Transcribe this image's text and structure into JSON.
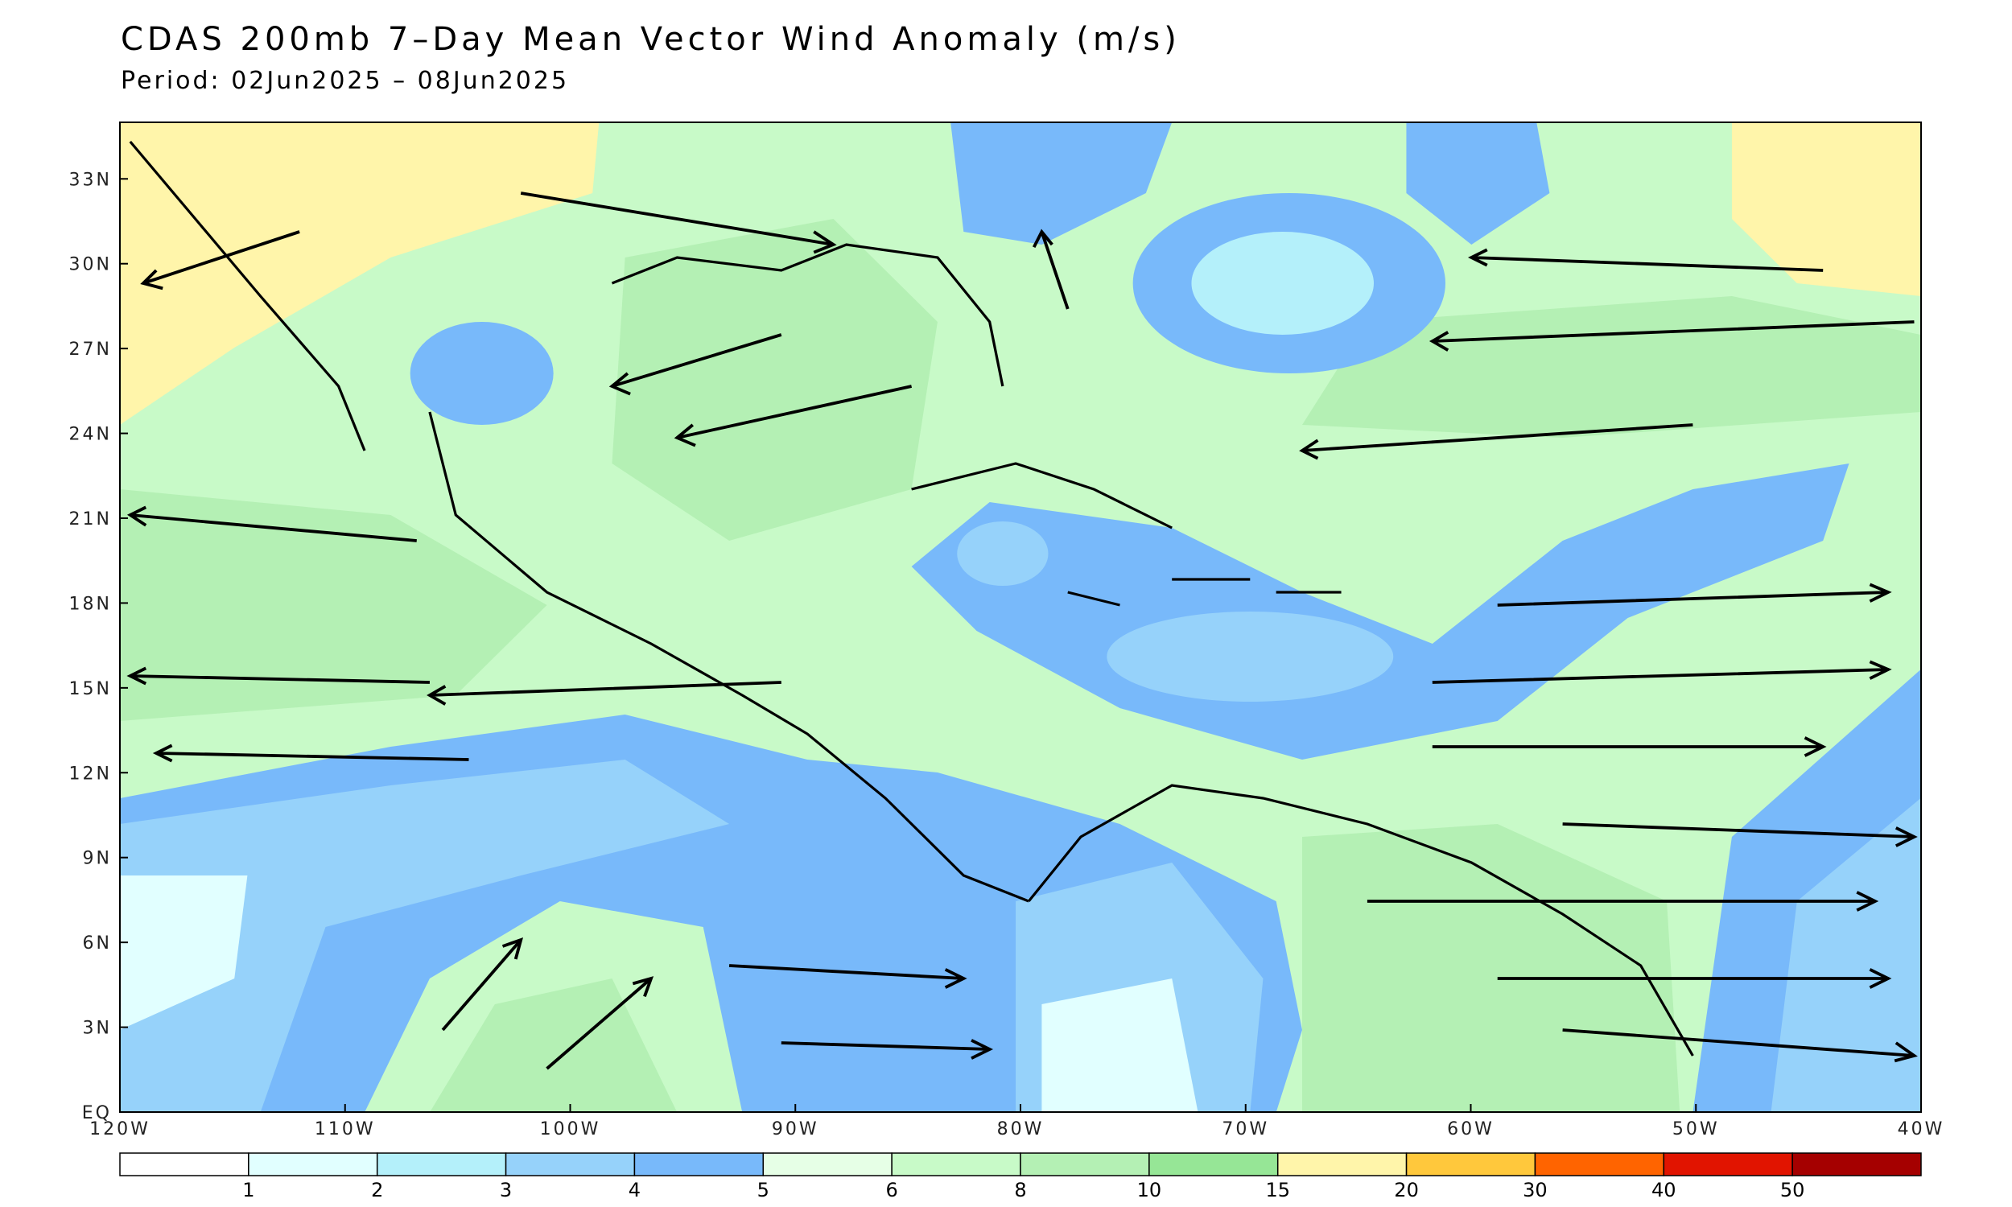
{
  "title": "CDAS 200mb 7–Day Mean Vector Wind Anomaly (m/s)",
  "subtitle": "Period: 02Jun2025 – 08Jun2025",
  "map": {
    "xlim": [
      -120,
      -40
    ],
    "ylim": [
      0,
      35
    ],
    "xticks": [
      {
        "value": -120,
        "label": "120W"
      },
      {
        "value": -110,
        "label": "110W"
      },
      {
        "value": -100,
        "label": "100W"
      },
      {
        "value": -90,
        "label": "90W"
      },
      {
        "value": -80,
        "label": "80W"
      },
      {
        "value": -70,
        "label": "70W"
      },
      {
        "value": -60,
        "label": "60W"
      },
      {
        "value": -50,
        "label": "50W"
      },
      {
        "value": -40,
        "label": "40W"
      }
    ],
    "yticks": [
      {
        "value": 0,
        "label": "EQ"
      },
      {
        "value": 3,
        "label": "3N"
      },
      {
        "value": 6,
        "label": "6N"
      },
      {
        "value": 9,
        "label": "9N"
      },
      {
        "value": 12,
        "label": "12N"
      },
      {
        "value": 15,
        "label": "15N"
      },
      {
        "value": 18,
        "label": "18N"
      },
      {
        "value": 21,
        "label": "21N"
      },
      {
        "value": 24,
        "label": "24N"
      },
      {
        "value": 27,
        "label": "27N"
      },
      {
        "value": 30,
        "label": "30N"
      },
      {
        "value": 33,
        "label": "33N"
      }
    ]
  },
  "colorbar": {
    "levels": [
      1,
      2,
      3,
      4,
      5,
      6,
      8,
      10,
      15,
      20,
      30,
      40,
      50
    ],
    "colors": [
      "#ffffff",
      "#e1ffff",
      "#b4f0fa",
      "#96d2fa",
      "#78b9fa",
      "#e6ffe6",
      "#c8fac8",
      "#b4f0b4",
      "#96e696",
      "#fff5aa",
      "#ffc83c",
      "#ff6400",
      "#e11400",
      "#a50000"
    ]
  }
}
